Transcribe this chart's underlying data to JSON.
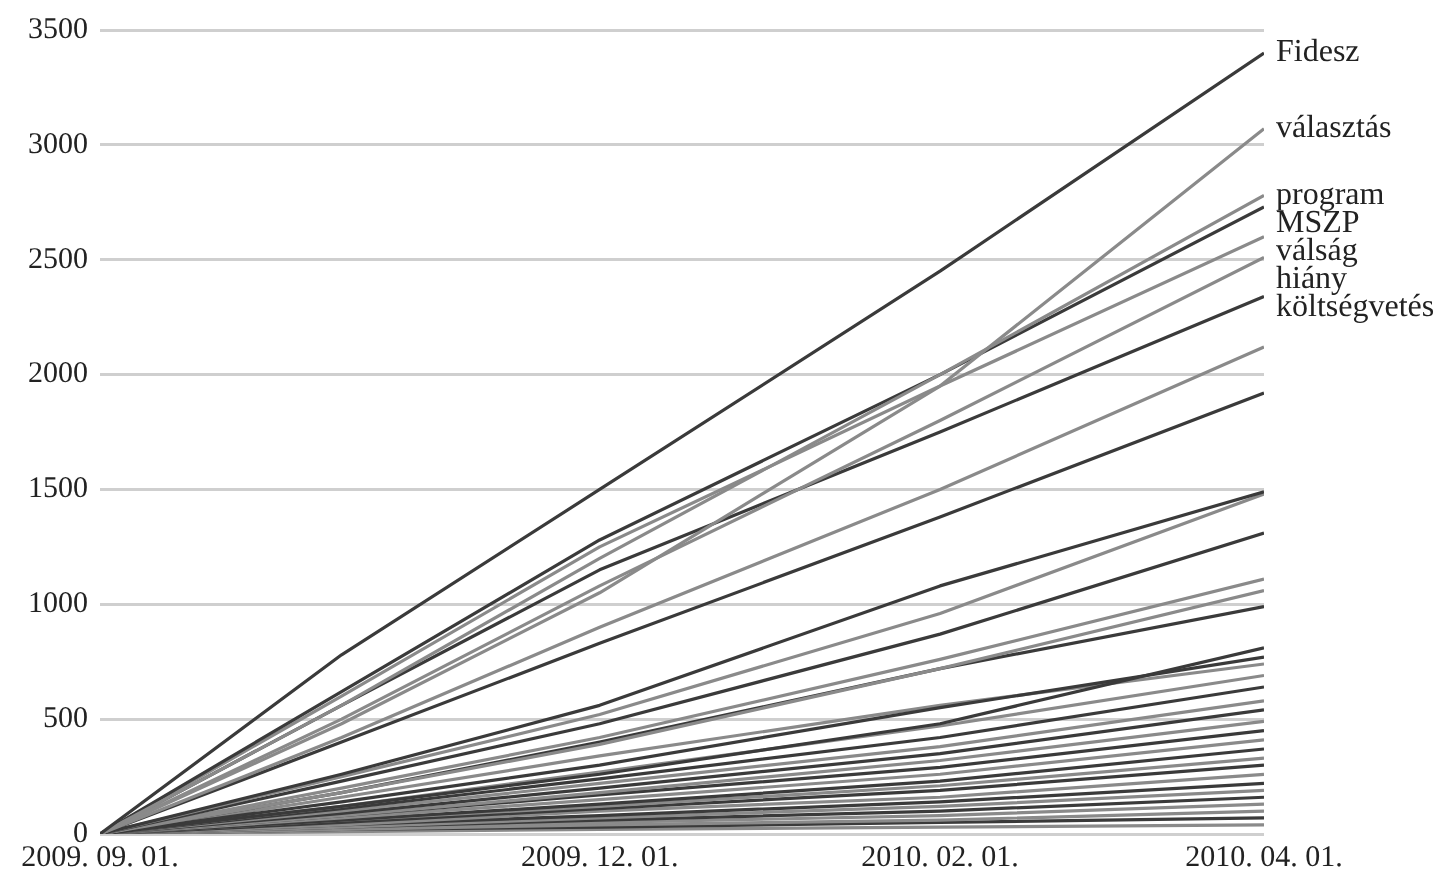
{
  "chart_data": {
    "type": "line",
    "x": [
      "2009-09-01",
      "2009-10-15",
      "2009-12-01",
      "2010-02-01",
      "2010-04-01"
    ],
    "xlim": [
      "2009-09-01",
      "2010-04-01"
    ],
    "xticks": [
      {
        "value": "2009-09-01",
        "label": "2009. 09. 01."
      },
      {
        "value": "2009-12-01",
        "label": "2009. 12. 01."
      },
      {
        "value": "2010-02-01",
        "label": "2010. 02. 01."
      },
      {
        "value": "2010-04-01",
        "label": "2010. 04. 01."
      }
    ],
    "ylim": [
      0,
      3500
    ],
    "yticks": [
      0,
      500,
      1000,
      1500,
      2000,
      2500,
      3000,
      3500
    ],
    "grid": "y",
    "legend": false,
    "marker": "none",
    "line_style": "solid",
    "series": [
      {
        "name": "Fidesz",
        "color": "#3a3a3a",
        "values": [
          0,
          780,
          1500,
          2450,
          3400
        ]
      },
      {
        "name": "választás",
        "color": "#8a8a8a",
        "values": [
          0,
          480,
          1050,
          1950,
          3070
        ]
      },
      {
        "name": "program",
        "color": "#8a8a8a",
        "values": [
          0,
          560,
          1200,
          2000,
          2780
        ]
      },
      {
        "name": "MSZP",
        "color": "#3a3a3a",
        "values": [
          0,
          620,
          1280,
          2000,
          2730
        ]
      },
      {
        "name": "válság",
        "color": "#8a8a8a",
        "values": [
          0,
          600,
          1250,
          1950,
          2600
        ]
      },
      {
        "name": "hiány",
        "color": "#8a8a8a",
        "values": [
          0,
          500,
          1080,
          1800,
          2510
        ]
      },
      {
        "name": "költségvetés",
        "color": "#3a3a3a",
        "values": [
          0,
          560,
          1150,
          1750,
          2340
        ]
      },
      {
        "color": "#8a8a8a",
        "values": [
          0,
          420,
          900,
          1500,
          2120
        ]
      },
      {
        "color": "#3a3a3a",
        "values": [
          0,
          400,
          830,
          1380,
          1920
        ]
      },
      {
        "color": "#3a3a3a",
        "values": [
          0,
          260,
          560,
          1080,
          1490
        ]
      },
      {
        "color": "#8a8a8a",
        "values": [
          0,
          250,
          520,
          960,
          1480
        ]
      },
      {
        "color": "#3a3a3a",
        "values": [
          0,
          230,
          480,
          870,
          1310
        ]
      },
      {
        "color": "#8a8a8a",
        "values": [
          0,
          200,
          420,
          760,
          1110
        ]
      },
      {
        "color": "#8a8a8a",
        "values": [
          0,
          180,
          390,
          720,
          1060
        ]
      },
      {
        "color": "#3a3a3a",
        "values": [
          0,
          180,
          400,
          720,
          990
        ]
      },
      {
        "color": "#3a3a3a",
        "values": [
          0,
          120,
          260,
          480,
          810
        ]
      },
      {
        "color": "#3a3a3a",
        "values": [
          0,
          140,
          300,
          550,
          770
        ]
      },
      {
        "color": "#8a8a8a",
        "values": [
          0,
          160,
          340,
          560,
          740
        ]
      },
      {
        "color": "#8a8a8a",
        "values": [
          0,
          120,
          270,
          470,
          690
        ]
      },
      {
        "color": "#3a3a3a",
        "values": [
          0,
          110,
          240,
          420,
          640
        ]
      },
      {
        "color": "#8a8a8a",
        "values": [
          0,
          100,
          220,
          380,
          580
        ]
      },
      {
        "color": "#3a3a3a",
        "values": [
          0,
          90,
          200,
          350,
          540
        ]
      },
      {
        "color": "#8a8a8a",
        "values": [
          0,
          80,
          180,
          320,
          490
        ]
      },
      {
        "color": "#3a3a3a",
        "values": [
          0,
          80,
          170,
          290,
          450
        ]
      },
      {
        "color": "#8a8a8a",
        "values": [
          0,
          70,
          150,
          260,
          410
        ]
      },
      {
        "color": "#3a3a3a",
        "values": [
          0,
          60,
          130,
          230,
          370
        ]
      },
      {
        "color": "#8a8a8a",
        "values": [
          0,
          60,
          120,
          210,
          330
        ]
      },
      {
        "color": "#3a3a3a",
        "values": [
          0,
          50,
          110,
          190,
          300
        ]
      },
      {
        "color": "#8a8a8a",
        "values": [
          0,
          40,
          100,
          160,
          260
        ]
      },
      {
        "color": "#3a3a3a",
        "values": [
          0,
          40,
          80,
          140,
          220
        ]
      },
      {
        "color": "#8a8a8a",
        "values": [
          0,
          30,
          70,
          120,
          190
        ]
      },
      {
        "color": "#3a3a3a",
        "values": [
          0,
          30,
          60,
          100,
          160
        ]
      },
      {
        "color": "#8a8a8a",
        "values": [
          0,
          30,
          50,
          80,
          130
        ]
      },
      {
        "color": "#8a8a8a",
        "values": [
          0,
          20,
          40,
          60,
          100
        ]
      },
      {
        "color": "#3a3a3a",
        "values": [
          0,
          20,
          30,
          50,
          70
        ]
      },
      {
        "color": "#8a8a8a",
        "values": [
          0,
          10,
          20,
          30,
          40
        ]
      }
    ]
  }
}
